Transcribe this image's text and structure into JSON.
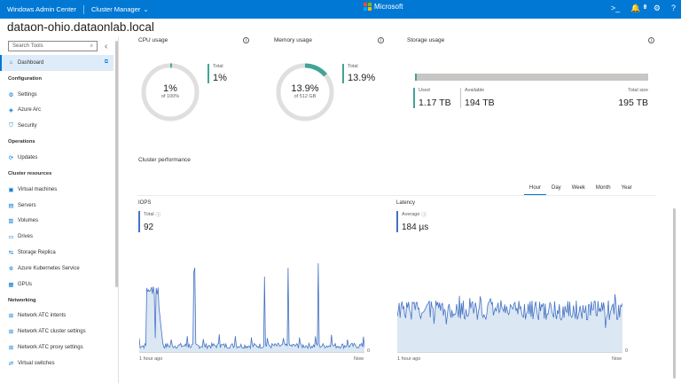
{
  "topbar": {
    "app_title": "Windows Admin Center",
    "tool_title": "Cluster Manager",
    "brand": "Microsoft",
    "icons": [
      "console-icon",
      "notifications-icon",
      "settings-icon",
      "help-icon"
    ],
    "notification_count": "1",
    "colors": {
      "bar": "#0078d4"
    }
  },
  "cluster_name": "dataon-ohio.dataonlab.local",
  "sidebar": {
    "search_placeholder": "Search Tools",
    "items": [
      {
        "type": "item",
        "label": "Dashboard",
        "icon": "home-icon",
        "active": true,
        "external": true
      },
      {
        "type": "section",
        "label": "Configuration"
      },
      {
        "type": "item",
        "label": "Settings",
        "icon": "gear-icon"
      },
      {
        "type": "item",
        "label": "Azure Arc",
        "icon": "azure-arc-icon"
      },
      {
        "type": "item",
        "label": "Security",
        "icon": "shield-icon"
      },
      {
        "type": "section",
        "label": "Operations"
      },
      {
        "type": "item",
        "label": "Updates",
        "icon": "updates-icon"
      },
      {
        "type": "section",
        "label": "Cluster resources"
      },
      {
        "type": "item",
        "label": "Virtual machines",
        "icon": "vm-icon"
      },
      {
        "type": "item",
        "label": "Servers",
        "icon": "server-icon"
      },
      {
        "type": "item",
        "label": "Volumes",
        "icon": "volume-icon"
      },
      {
        "type": "item",
        "label": "Drives",
        "icon": "drive-icon"
      },
      {
        "type": "item",
        "label": "Storage Replica",
        "icon": "replica-icon"
      },
      {
        "type": "item",
        "label": "Azure Kubernetes Service",
        "icon": "kubernetes-icon"
      },
      {
        "type": "item",
        "label": "GPUs",
        "icon": "gpu-icon"
      },
      {
        "type": "section",
        "label": "Networking"
      },
      {
        "type": "item",
        "label": "Network ATC intents",
        "icon": "network-icon"
      },
      {
        "type": "item",
        "label": "Network ATC cluster settings",
        "icon": "network-icon"
      },
      {
        "type": "item",
        "label": "Network ATC proxy settings",
        "icon": "network-icon"
      },
      {
        "type": "item",
        "label": "Virtual switches",
        "icon": "switch-icon"
      }
    ]
  },
  "cpu": {
    "title": "CPU usage",
    "center_value": "1%",
    "center_sub": "of 100%",
    "total_label": "Total",
    "total_value": "1%",
    "fraction": 0.01,
    "color": "#41a497"
  },
  "memory": {
    "title": "Memory usage",
    "center_value": "13.9%",
    "center_sub": "of 512 GB",
    "total_label": "Total",
    "total_value": "13.9%",
    "fraction": 0.139,
    "color": "#41a497"
  },
  "storage": {
    "title": "Storage usage",
    "used_label": "Used",
    "used_value": "1.17 TB",
    "available_label": "Available",
    "available_value": "194 TB",
    "total_label": "Total size",
    "total_value": "195 TB",
    "used_fraction": 0.006
  },
  "performance": {
    "title": "Cluster performance",
    "tabs": [
      "Hour",
      "Day",
      "Week",
      "Month",
      "Year"
    ],
    "selected_tab": "Hour",
    "iops": {
      "header": "IOPS",
      "metric_label": "Total",
      "metric_value": "92",
      "x_start": "1 hour ago",
      "x_end": "Now",
      "y_zero": "0"
    },
    "latency": {
      "header": "Latency",
      "metric_label": "Average",
      "metric_value": "184 µs",
      "x_start": "1 hour ago",
      "x_end": "Now",
      "y_zero": "0"
    },
    "line_color": "#4472c4",
    "fill_color": "#dbe7f3"
  }
}
